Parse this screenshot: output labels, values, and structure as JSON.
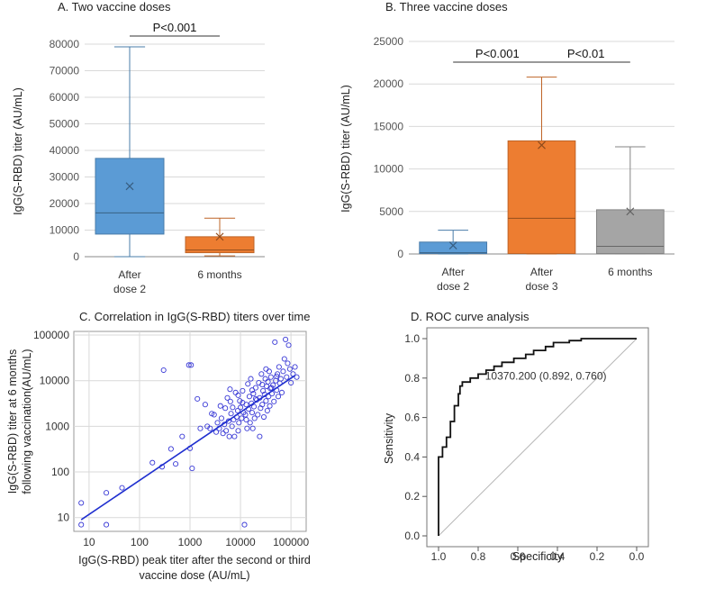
{
  "chart_data": [
    {
      "type": "box",
      "title": "A. Two vaccine doses",
      "ylabel": "IgG(S-RBD) titer (AU/mL)",
      "ylim": [
        0,
        80000
      ],
      "yticks": [
        "0",
        "10000",
        "20000",
        "30000",
        "40000",
        "50000",
        "60000",
        "70000",
        "80000"
      ],
      "ytick_values": [
        0,
        10000,
        20000,
        30000,
        40000,
        50000,
        60000,
        70000,
        80000
      ],
      "categories": [
        {
          "line1": "After",
          "line2": "dose 2"
        },
        {
          "line1": "6 months",
          "line2": ""
        }
      ],
      "boxes": [
        {
          "min": 0,
          "q1": 8500,
          "median": 16500,
          "q3": 37000,
          "max": 79000,
          "mean": 26500,
          "color": "#5b9bd5"
        },
        {
          "min": 300,
          "q1": 1500,
          "median": 2500,
          "q3": 7500,
          "max": 14500,
          "mean": 7500,
          "color": "#ed7d31"
        }
      ],
      "annotations": [
        {
          "text": "P<0.001",
          "from": 0,
          "to": 1
        }
      ]
    },
    {
      "type": "box",
      "title": "B. Three vaccine doses",
      "ylabel": "IgG(S-RBD) titer (AU/mL)",
      "ylim": [
        0,
        25000
      ],
      "yticks": [
        "0",
        "5000",
        "10000",
        "15000",
        "20000",
        "25000"
      ],
      "ytick_values": [
        0,
        5000,
        10000,
        15000,
        20000,
        25000
      ],
      "categories": [
        {
          "line1": "After",
          "line2": "dose 2"
        },
        {
          "line1": "After",
          "line2": "dose 3"
        },
        {
          "line1": "6 months",
          "line2": ""
        }
      ],
      "boxes": [
        {
          "min": 0,
          "q1": 50,
          "median": 150,
          "q3": 1400,
          "max": 2800,
          "mean": 1000,
          "color": "#5b9bd5"
        },
        {
          "min": 0,
          "q1": 50,
          "median": 4200,
          "q3": 13300,
          "max": 20800,
          "mean": 12800,
          "color": "#ed7d31"
        },
        {
          "min": 0,
          "q1": 50,
          "median": 900,
          "q3": 5200,
          "max": 12600,
          "mean": 5000,
          "color": "#a5a5a5"
        }
      ],
      "annotations": [
        {
          "text": "P<0.001",
          "from": 0,
          "to": 1
        },
        {
          "text": "P<0.01",
          "from": 1,
          "to": 2
        }
      ]
    },
    {
      "type": "scatter",
      "title": "C. Correlation in IgG(S-RBD) titers over time",
      "xlabel_line1": "IgG(S-RBD) peak titer after the second or third",
      "xlabel_line2": "vaccine dose (AU/mL)",
      "ylabel_line1": "IgG(S-RBD) titer at 6 months",
      "ylabel_line2": "following vaccination(AU/mL)",
      "scale": "log10",
      "xlim": [
        5,
        200000
      ],
      "ylim": [
        5,
        120000
      ],
      "xticks": [
        "10",
        "100",
        "1000",
        "10000",
        "100000"
      ],
      "xtick_values": [
        10,
        100,
        1000,
        10000,
        100000
      ],
      "yticks": [
        "10",
        "100",
        "1000",
        "10000",
        "100000"
      ],
      "ytick_values": [
        10,
        100,
        1000,
        10000,
        100000
      ],
      "fit_line": {
        "x": [
          7,
          120000
        ],
        "y": [
          9,
          13000
        ]
      },
      "points": [
        [
          7,
          21
        ],
        [
          7,
          7
        ],
        [
          22,
          7
        ],
        [
          22,
          35
        ],
        [
          45,
          45
        ],
        [
          180,
          160
        ],
        [
          280,
          130
        ],
        [
          300,
          17000
        ],
        [
          420,
          320
        ],
        [
          520,
          150
        ],
        [
          950,
          22000
        ],
        [
          1050,
          22000
        ],
        [
          1000,
          330
        ],
        [
          1100,
          120
        ],
        [
          1400,
          4000
        ],
        [
          1600,
          900
        ],
        [
          2200,
          1000
        ],
        [
          2700,
          1900
        ],
        [
          3000,
          1800
        ],
        [
          3300,
          750
        ],
        [
          3500,
          1200
        ],
        [
          3800,
          900
        ],
        [
          4200,
          1500
        ],
        [
          4500,
          700
        ],
        [
          4800,
          1100
        ],
        [
          5000,
          2500
        ],
        [
          5200,
          800
        ],
        [
          5500,
          4200
        ],
        [
          5800,
          1300
        ],
        [
          6000,
          600
        ],
        [
          6200,
          6500
        ],
        [
          6500,
          1900
        ],
        [
          6800,
          1000
        ],
        [
          7000,
          2600
        ],
        [
          7300,
          1400
        ],
        [
          7600,
          600
        ],
        [
          8000,
          5500
        ],
        [
          8400,
          1600
        ],
        [
          8800,
          2200
        ],
        [
          9000,
          800
        ],
        [
          9300,
          1200
        ],
        [
          9700,
          3600
        ],
        [
          10000,
          2600
        ],
        [
          10500,
          1500
        ],
        [
          11000,
          6000
        ],
        [
          11500,
          2000
        ],
        [
          12000,
          7
        ],
        [
          12500,
          1800
        ],
        [
          13000,
          3000
        ],
        [
          13500,
          900
        ],
        [
          14000,
          8500
        ],
        [
          14500,
          2400
        ],
        [
          15000,
          4500
        ],
        [
          15500,
          1200
        ],
        [
          16000,
          11000
        ],
        [
          16500,
          3200
        ],
        [
          17000,
          2000
        ],
        [
          17500,
          900
        ],
        [
          18000,
          5200
        ],
        [
          18500,
          2700
        ],
        [
          19000,
          1500
        ],
        [
          20000,
          7000
        ],
        [
          21000,
          3800
        ],
        [
          22000,
          1800
        ],
        [
          23000,
          9000
        ],
        [
          24000,
          4200
        ],
        [
          25000,
          2500
        ],
        [
          26000,
          14000
        ],
        [
          27000,
          3000
        ],
        [
          28000,
          6000
        ],
        [
          29000,
          1600
        ],
        [
          30000,
          5000
        ],
        [
          31000,
          11000
        ],
        [
          32000,
          3600
        ],
        [
          33000,
          7500
        ],
        [
          34000,
          2200
        ],
        [
          35000,
          9500
        ],
        [
          36000,
          4500
        ],
        [
          37000,
          16000
        ],
        [
          38000,
          2800
        ],
        [
          39000,
          6800
        ],
        [
          40000,
          12000
        ],
        [
          42000,
          5200
        ],
        [
          44000,
          8000
        ],
        [
          46000,
          3500
        ],
        [
          48000,
          70000
        ],
        [
          50000,
          10000
        ],
        [
          52000,
          6200
        ],
        [
          54000,
          14000
        ],
        [
          56000,
          4500
        ],
        [
          58000,
          20000
        ],
        [
          60000,
          8800
        ],
        [
          63000,
          11000
        ],
        [
          66000,
          5500
        ],
        [
          70000,
          16000
        ],
        [
          74000,
          30000
        ],
        [
          78000,
          80000
        ],
        [
          82000,
          12000
        ],
        [
          86000,
          24000
        ],
        [
          90000,
          60000
        ],
        [
          95000,
          18000
        ],
        [
          100000,
          9000
        ],
        [
          110000,
          14000
        ],
        [
          120000,
          20000
        ],
        [
          130000,
          12000
        ],
        [
          700,
          600
        ],
        [
          2000,
          3000
        ],
        [
          2500,
          900
        ],
        [
          4000,
          2800
        ],
        [
          6300,
          3500
        ],
        [
          9000,
          4800
        ],
        [
          11000,
          3300
        ],
        [
          13000,
          1400
        ],
        [
          17000,
          6200
        ],
        [
          20000,
          4000
        ],
        [
          24000,
          600
        ],
        [
          27000,
          8200
        ],
        [
          32000,
          18000
        ],
        [
          41000,
          7000
        ],
        [
          52000,
          12500
        ]
      ]
    },
    {
      "type": "line",
      "title": "D. ROC curve analysis",
      "xlabel": "Specificity",
      "ylabel": "Sensitivity",
      "xlim": [
        1.0,
        0.0
      ],
      "ylim": [
        0.0,
        1.0
      ],
      "xticks": [
        "1.0",
        "0.8",
        "0.6",
        "0.4",
        "0.2",
        "0.0"
      ],
      "xtick_values": [
        1.0,
        0.8,
        0.6,
        0.4,
        0.2,
        0.0
      ],
      "yticks": [
        "0.0",
        "0.2",
        "0.4",
        "0.6",
        "0.8",
        "1.0"
      ],
      "ytick_values": [
        0.0,
        0.2,
        0.4,
        0.6,
        0.8,
        1.0
      ],
      "annotation": "10370.200 (0.892, 0.760)",
      "annotation_point": [
        0.892,
        0.76
      ],
      "roc_points": [
        [
          1.0,
          0.0
        ],
        [
          1.0,
          0.4
        ],
        [
          0.98,
          0.4
        ],
        [
          0.98,
          0.45
        ],
        [
          0.96,
          0.45
        ],
        [
          0.96,
          0.5
        ],
        [
          0.94,
          0.5
        ],
        [
          0.94,
          0.58
        ],
        [
          0.92,
          0.58
        ],
        [
          0.92,
          0.66
        ],
        [
          0.9,
          0.66
        ],
        [
          0.9,
          0.72
        ],
        [
          0.892,
          0.72
        ],
        [
          0.892,
          0.76
        ],
        [
          0.88,
          0.76
        ],
        [
          0.88,
          0.78
        ],
        [
          0.84,
          0.78
        ],
        [
          0.84,
          0.8
        ],
        [
          0.8,
          0.8
        ],
        [
          0.8,
          0.82
        ],
        [
          0.76,
          0.82
        ],
        [
          0.76,
          0.84
        ],
        [
          0.72,
          0.84
        ],
        [
          0.72,
          0.86
        ],
        [
          0.68,
          0.86
        ],
        [
          0.68,
          0.88
        ],
        [
          0.62,
          0.88
        ],
        [
          0.62,
          0.9
        ],
        [
          0.56,
          0.9
        ],
        [
          0.56,
          0.92
        ],
        [
          0.52,
          0.92
        ],
        [
          0.52,
          0.94
        ],
        [
          0.46,
          0.94
        ],
        [
          0.46,
          0.96
        ],
        [
          0.42,
          0.96
        ],
        [
          0.42,
          0.98
        ],
        [
          0.34,
          0.98
        ],
        [
          0.34,
          0.99
        ],
        [
          0.28,
          0.99
        ],
        [
          0.28,
          1.0
        ],
        [
          0.0,
          1.0
        ]
      ],
      "diagonal": [
        [
          1.0,
          0.0
        ],
        [
          0.0,
          1.0
        ]
      ]
    }
  ]
}
